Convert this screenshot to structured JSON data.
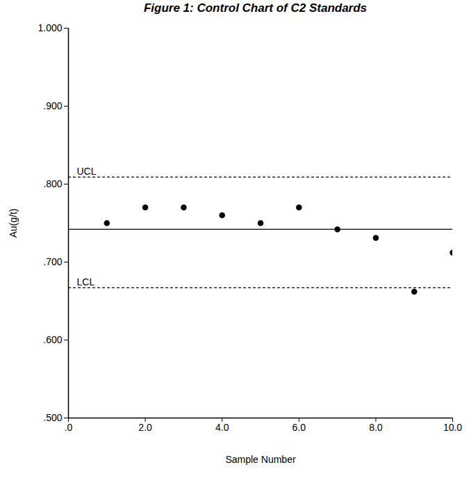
{
  "chart_data": {
    "type": "scatter",
    "title": "Figure 1: Control Chart of C2 Standards",
    "x_label": "Sample Number",
    "y_label": "Au(g/t)",
    "x": [
      1,
      2,
      3,
      4,
      5,
      6,
      7,
      8,
      9,
      10
    ],
    "values": [
      0.75,
      0.77,
      0.77,
      0.76,
      0.75,
      0.77,
      0.742,
      0.731,
      0.662,
      0.712
    ],
    "color": "#000000",
    "marker": "circle",
    "xlim": [
      0,
      10
    ],
    "xticks": [
      {
        "value": 0,
        "label": ".0"
      },
      {
        "value": 2,
        "label": "2.0"
      },
      {
        "value": 4,
        "label": "4.0"
      },
      {
        "value": 6,
        "label": "6.0"
      },
      {
        "value": 8,
        "label": "8.0"
      },
      {
        "value": 10,
        "label": "10.0"
      }
    ],
    "ylim": [
      0.5,
      1.0
    ],
    "yticks": [
      {
        "value": 0.5,
        "label": ".500"
      },
      {
        "value": 0.6,
        "label": ".600"
      },
      {
        "value": 0.7,
        "label": ".700"
      },
      {
        "value": 0.8,
        "label": ".800"
      },
      {
        "value": 0.9,
        "label": ".900"
      },
      {
        "value": 1.0,
        "label": "1.000"
      }
    ],
    "grid": false,
    "reference_lines": [
      {
        "label": "UCL",
        "value": 0.809,
        "line_style": "dashed"
      },
      {
        "value": 0.742,
        "line_style": "solid"
      },
      {
        "label": "LCL",
        "value": 0.667,
        "line_style": "dashed"
      }
    ]
  }
}
